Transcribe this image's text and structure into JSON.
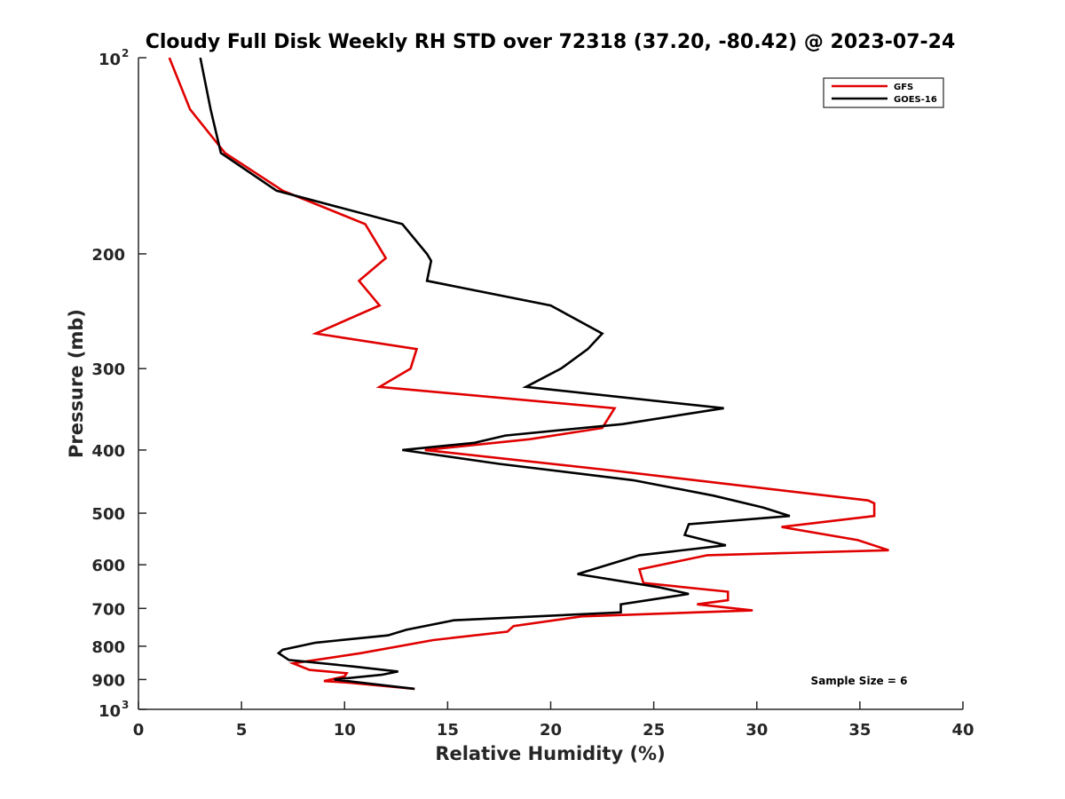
{
  "chart_data": {
    "type": "line",
    "title": "Cloudy Full Disk Weekly RH STD over 72318 (37.20, -80.42) @ 2023-07-24",
    "xlabel": "Relative Humidity (%)",
    "ylabel": "Pressure (mb)",
    "xlim": [
      0,
      40
    ],
    "ylim": [
      100,
      1000
    ],
    "yscale": "log",
    "y_reversed": true,
    "grid": false,
    "legend_position": "top-right",
    "x_ticks": [
      {
        "value": 0,
        "label": "0"
      },
      {
        "value": 5,
        "label": "5"
      },
      {
        "value": 10,
        "label": "10"
      },
      {
        "value": 15,
        "label": "15"
      },
      {
        "value": 20,
        "label": "20"
      },
      {
        "value": 25,
        "label": "25"
      },
      {
        "value": 30,
        "label": "30"
      },
      {
        "value": 35,
        "label": "35"
      },
      {
        "value": 40,
        "label": "40"
      }
    ],
    "y_ticks": [
      {
        "value": 100,
        "label": "10",
        "sup": "2"
      },
      {
        "value": 200,
        "label": "200"
      },
      {
        "value": 300,
        "label": "300"
      },
      {
        "value": 400,
        "label": "400"
      },
      {
        "value": 500,
        "label": "500"
      },
      {
        "value": 600,
        "label": "600"
      },
      {
        "value": 700,
        "label": "700"
      },
      {
        "value": 800,
        "label": "800"
      },
      {
        "value": 900,
        "label": "900"
      },
      {
        "value": 1000,
        "label": "10",
        "sup": "3"
      }
    ],
    "annotation": "Sample Size = 6",
    "series": [
      {
        "name": "GFS",
        "color": "#e00000",
        "x": [
          1.5,
          2.5,
          4.2,
          7.0,
          11.0,
          12.0,
          10.7,
          11.7,
          8.6,
          13.5,
          13.2,
          11.7,
          23.1,
          22.5,
          19.0,
          13.9,
          23.0,
          35.4,
          35.7,
          35.7,
          31.2,
          34.9,
          36.4,
          27.6,
          24.3,
          24.5,
          28.6,
          28.6,
          27.1,
          29.8,
          21.5,
          18.2,
          17.9,
          14.3,
          10.8,
          7.5,
          8.3,
          10.1,
          10.0,
          9.0,
          10.2,
          13.4
        ],
        "y": [
          100,
          120,
          140,
          160,
          180,
          203,
          220,
          240,
          265,
          280,
          300,
          320,
          345,
          370,
          385,
          400,
          430,
          478,
          483,
          505,
          525,
          550,
          570,
          580,
          610,
          640,
          660,
          680,
          690,
          705,
          720,
          745,
          760,
          783,
          820,
          850,
          870,
          880,
          890,
          905,
          910,
          930
        ]
      },
      {
        "name": "GOES-16",
        "color": "#000000",
        "x": [
          3.0,
          3.5,
          4.0,
          6.7,
          12.8,
          14.0,
          14.2,
          14.0,
          20.0,
          22.5,
          21.8,
          20.5,
          18.8,
          28.4,
          23.5,
          17.8,
          16.3,
          12.8,
          17.5,
          24.0,
          27.9,
          30.3,
          31.6,
          26.7,
          26.5,
          28.5,
          24.3,
          21.3,
          25.3,
          26.7,
          23.4,
          23.4,
          15.3,
          13.0,
          12.1,
          8.6,
          7.0,
          6.8,
          7.3,
          10.5,
          12.6,
          11.8,
          9.5,
          13.4
        ],
        "y": [
          100,
          120,
          140,
          160,
          180,
          200,
          205,
          220,
          240,
          265,
          280,
          300,
          320,
          345,
          365,
          380,
          390,
          400,
          420,
          445,
          470,
          490,
          505,
          520,
          540,
          560,
          580,
          620,
          650,
          665,
          690,
          710,
          730,
          755,
          770,
          790,
          810,
          820,
          840,
          860,
          875,
          885,
          900,
          930
        ]
      }
    ]
  }
}
